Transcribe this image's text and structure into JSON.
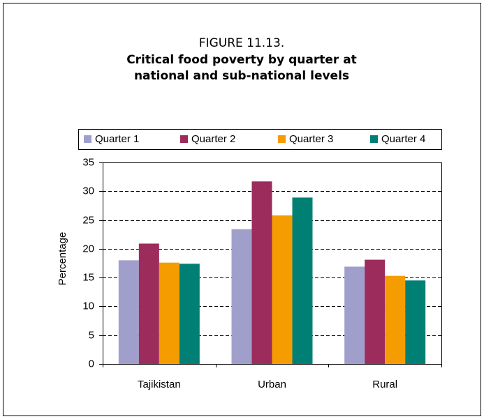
{
  "chart_data": {
    "type": "bar",
    "figure_label": "FIGURE 11.13.",
    "title": "Critical food poverty by quarter at national and sub-national levels",
    "ylabel": "Percentage",
    "categories": [
      "Tajikistan",
      "Urban",
      "Rural"
    ],
    "series": [
      {
        "name": "Quarter 1",
        "color": "#a09fcc",
        "values": [
          18.0,
          23.4,
          16.9
        ]
      },
      {
        "name": "Quarter 2",
        "color": "#9b2c5c",
        "values": [
          20.9,
          31.7,
          18.1
        ]
      },
      {
        "name": "Quarter 3",
        "color": "#f59d00",
        "values": [
          17.6,
          25.8,
          15.3
        ]
      },
      {
        "name": "Quarter 4",
        "color": "#008075",
        "values": [
          17.4,
          28.9,
          14.5
        ]
      }
    ],
    "ylim": [
      0,
      35
    ],
    "yticks": [
      0,
      5,
      10,
      15,
      20,
      25,
      30,
      35
    ],
    "grid": true
  }
}
